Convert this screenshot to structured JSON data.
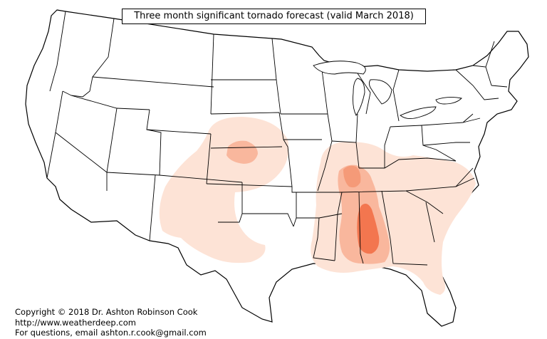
{
  "map": {
    "title": "Three month significant tornado forecast (valid March 2018)",
    "region": "contiguous-united-states",
    "layers": {
      "state-boundaries": {
        "stroke": "#000000",
        "fill": "#ffffff"
      },
      "risk-low": {
        "color": "#fde3d6",
        "label": ""
      },
      "risk-moderate": {
        "color": "#f9b79d",
        "label": ""
      },
      "risk-high": {
        "color": "#f3764f",
        "label": ""
      }
    }
  },
  "credits": {
    "copyright": "Copyright © 2018 Dr. Ashton Robinson Cook",
    "website": "http://www.weatherdeep.com",
    "contact": "For questions, email ashton.r.cook@gmail.com"
  }
}
